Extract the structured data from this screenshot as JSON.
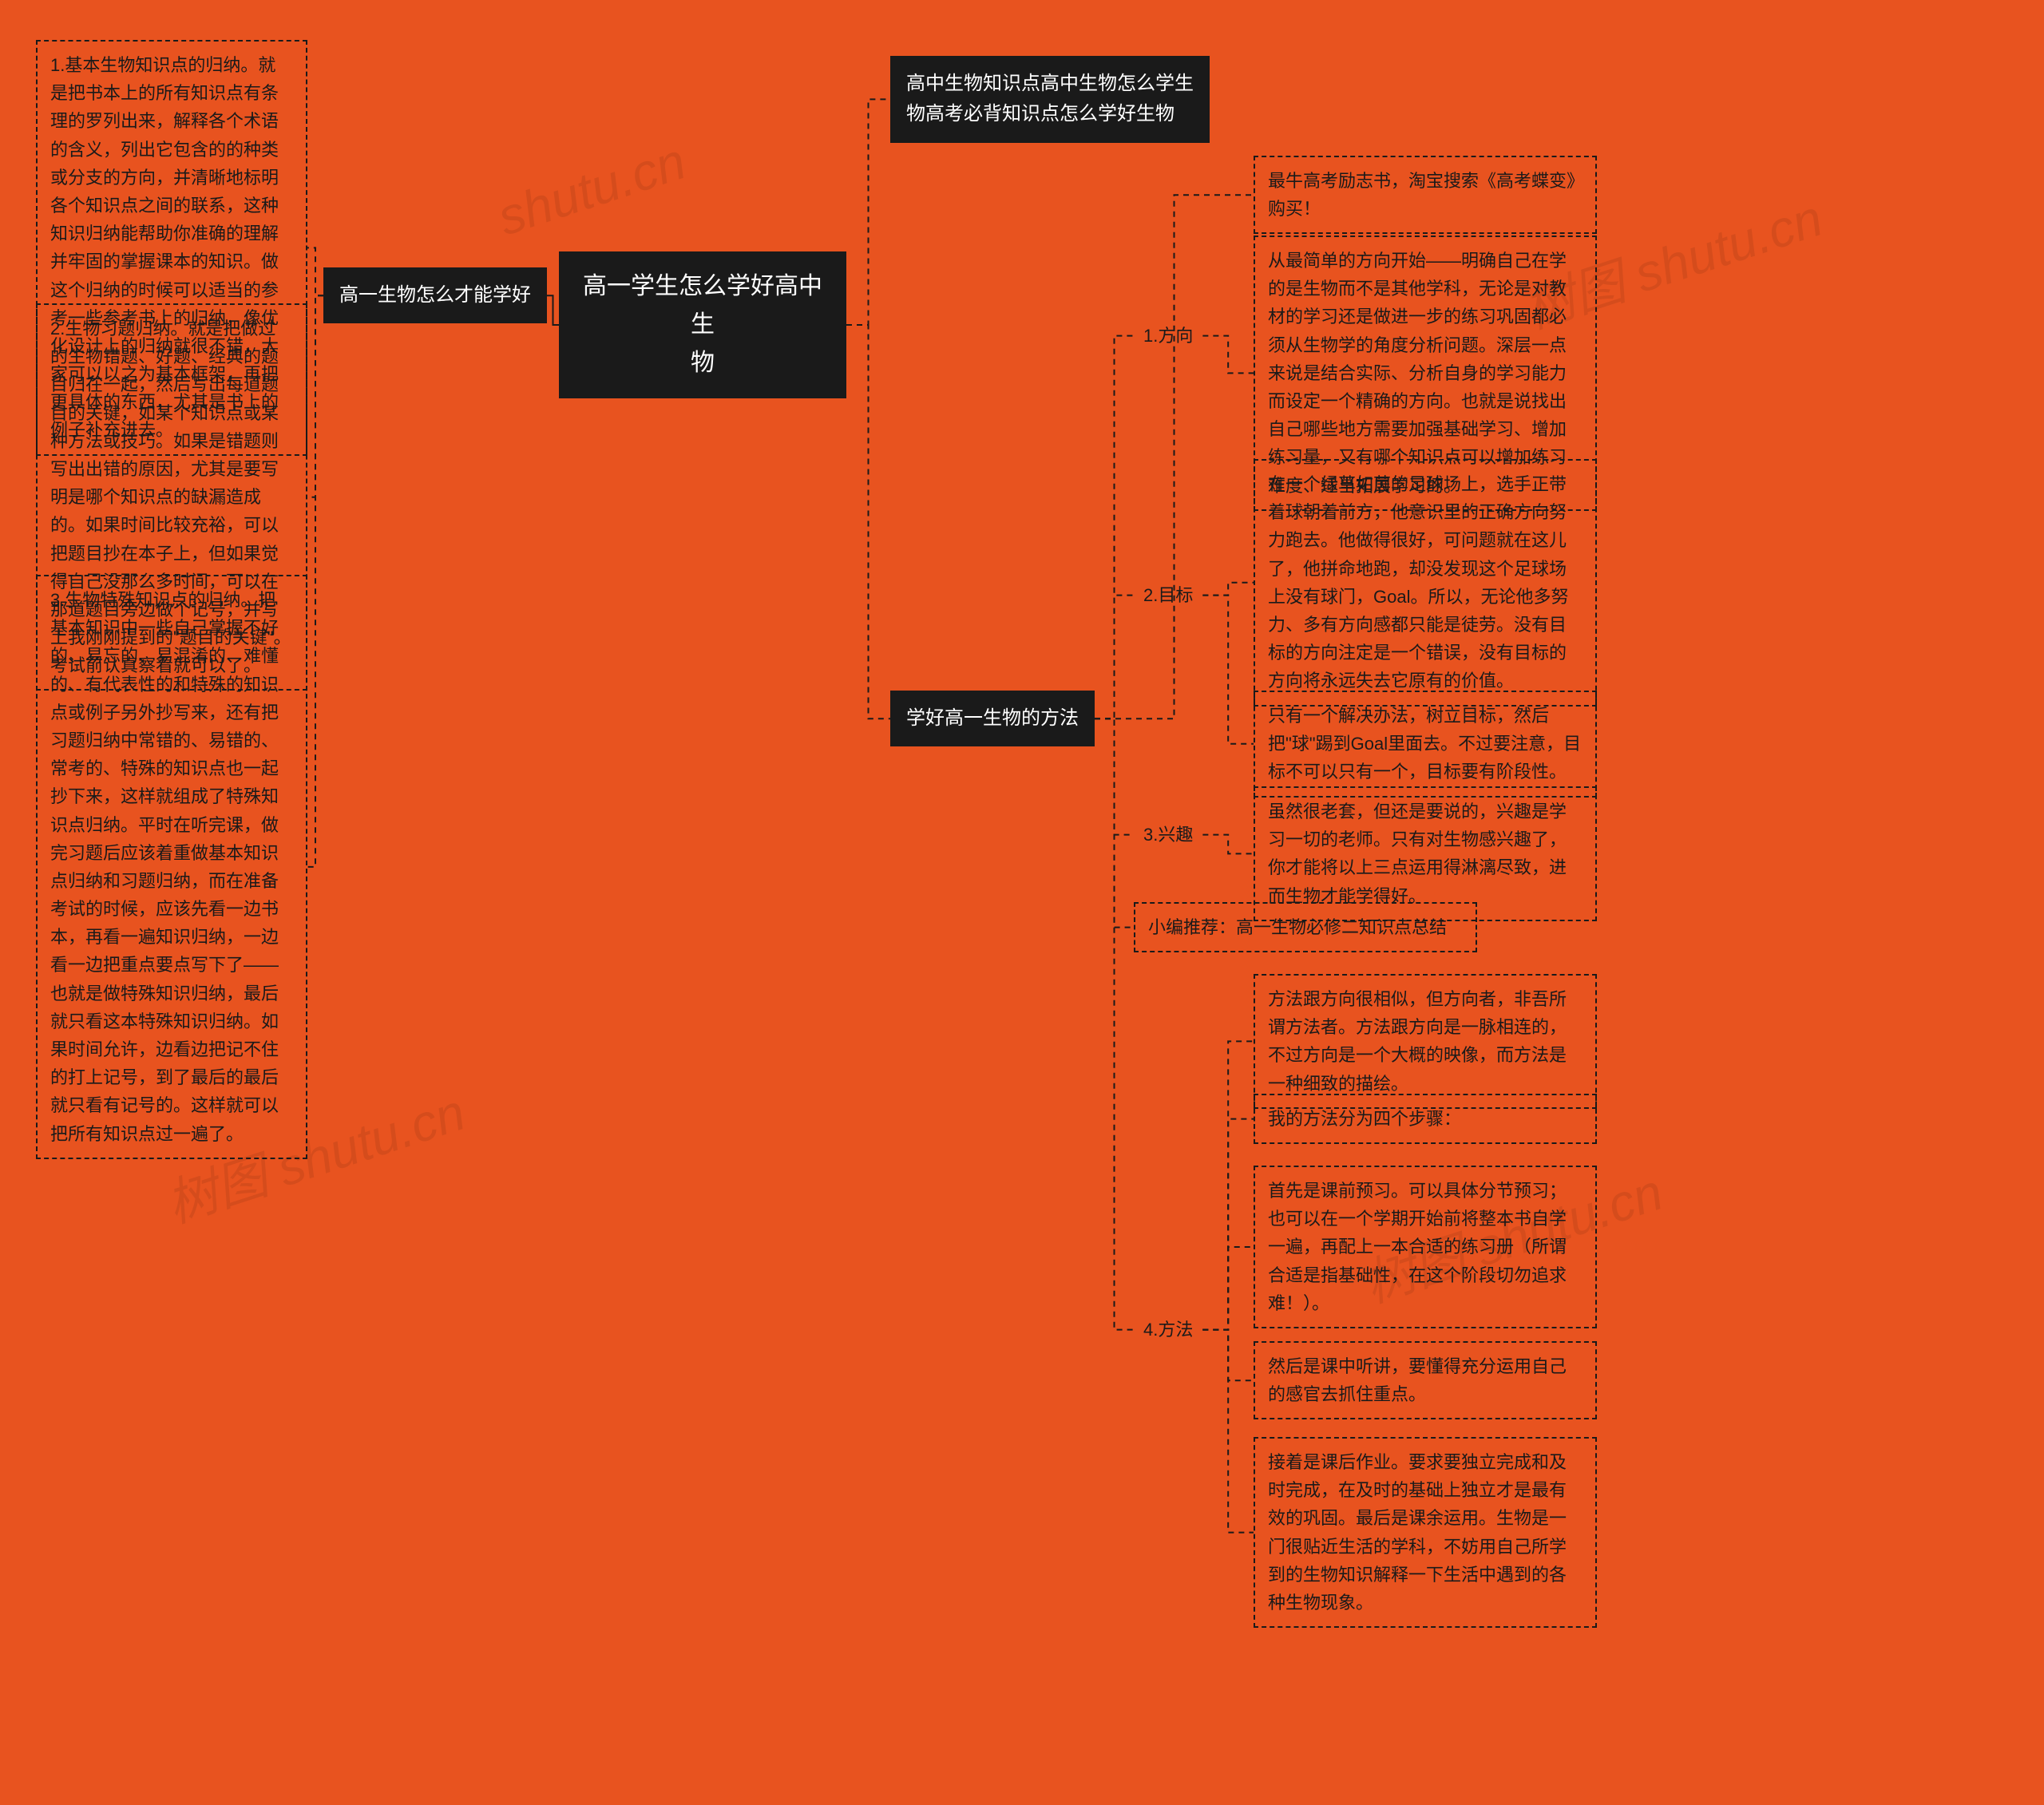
{
  "background_color": "#e8531f",
  "node_colors": {
    "solid_bg": "#1a1a1a",
    "solid_fg": "#ffffff",
    "leaf_border": "#1a1a1a",
    "leaf_fg": "#1a1a1a"
  },
  "connector_color": "#1a1a1a",
  "watermarks": [
    "shutu.cn",
    "树图 shutu.cn",
    "树图 shutu.cn",
    "树图 shutu.cn"
  ],
  "root": {
    "title_line1": "高一学生怎么学好高中生",
    "title_line2": "物"
  },
  "left_branch": {
    "label": "高一生物怎么才能学好",
    "leaves": [
      "1.基本生物知识点的归纳。就是把书本上的所有知识点有条理的罗列出来，解释各个术语的含义，列出它包含的的种类或分支的方向，并清晰地标明各个知识点之间的联系，这种知识归纳能帮助你准确的理解并牢固的掌握课本的知识。做这个归纳的时候可以适当的参考一些参考书上的归纳，像优化设计上的归纳就很不错，大家可以以之为基本框架，再把更具体的东西，尤其是书上的例子补充进去。",
      "2.生物习题归纳。就是把做过的生物错题、好题、经典的题目归在一起，然后写出每道题目的关键，如某个知识点或某种方法或技巧。如果是错题则写出出错的原因，尤其是要写明是哪个知识点的缺漏造成的。如果时间比较充裕，可以把题目抄在本子上，但如果觉得自己没那么多时间，可以在那道题目旁边做个记号，并写上我刚刚提到的\"题目的关键\"。考试前认真察看就可以了。",
      "3.生物特殊知识点的归纳。把基本知识中一些自己掌握不好的、易忘的、易混淆的、难懂的、有代表性的和特殊的知识点或例子另外抄写来，还有把习题归纳中常错的、易错的、常考的、特殊的知识点也一起抄下来，这样就组成了特殊知识点归纳。平时在听完课，做完习题后应该着重做基本知识点归纳和习题归纳，而在准备考试的时候，应该先看一边书本，再看一遍知识归纳，一边看一边把重点要点写下了——也就是做特殊知识归纳，最后就只看这本特殊知识归纳。如果时间允许，边看边把记不住的打上记号，到了最后的最后就只看有记号的。这样就可以把所有知识点过一遍了。"
    ]
  },
  "right_branches": {
    "top": {
      "line1": "高中生物知识点高中生物怎么学生",
      "line2": "物高考必背知识点怎么学好生物"
    },
    "bottom": {
      "label": "学好高一生物的方法",
      "children": [
        {
          "type": "leaf",
          "text": "最牛高考励志书，淘宝搜索《高考蝶变》购买！"
        },
        {
          "type": "sub",
          "label": "1.方向",
          "leaves": [
            "从最简单的方向开始——明确自己在学的是生物而不是其他学科，无论是对教材的学习还是做进一步的练习巩固都必须从生物学的角度分析问题。深层一点来说是结合实际、分析自身的学习能力而设定一个精确的方向。也就是说找出自己哪些地方需要加强基础学习、增加练习量，又有哪个知识点可以增加练习难度、适当拓展学习的。"
          ]
        },
        {
          "type": "sub",
          "label": "2.目标",
          "leaves": [
            "在一个绿草如茵的足球场上，选手正带着球朝着前方，他意识里的正确方向努力跑去。他做得很好，可问题就在这儿了，他拼命地跑，却没发现这个足球场上没有球门，Goal。所以，无论他多努力、多有方向感都只能是徒劳。没有目标的方向注定是一个错误，没有目标的方向将永远失去它原有的价值。",
            "只有一个解决办法，树立目标，然后把\"球\"踢到Goal里面去。不过要注意，目标不可以只有一个，目标要有阶段性。"
          ]
        },
        {
          "type": "sub",
          "label": "3.兴趣",
          "leaves": [
            "虽然很老套，但还是要说的，兴趣是学习一切的老师。只有对生物感兴趣了，你才能将以上三点运用得淋漓尽致，进而生物才能学得好。"
          ]
        },
        {
          "type": "leaf",
          "text": "小编推荐：高一生物必修二知识点总结"
        },
        {
          "type": "sub",
          "label": "4.方法",
          "leaves": [
            "方法跟方向很相似，但方向者，非吾所谓方法者。方法跟方向是一脉相连的，不过方向是一个大概的映像，而方法是一种细致的描绘。",
            "我的方法分为四个步骤：",
            "首先是课前预习。可以具体分节预习；也可以在一个学期开始前将整本书自学一遍，再配上一本合适的练习册（所谓合适是指基础性，在这个阶段切勿追求难！）。",
            "然后是课中听讲，要懂得充分运用自己的感官去抓住重点。",
            "接着是课后作业。要求要独立完成和及时完成，在及时的基础上独立才是最有效的巩固。最后是课余运用。生物是一门很贴近生活的学科，不妨用自己所学到的生物知识解释一下生活中遇到的各种生物现象。"
          ]
        }
      ]
    }
  }
}
